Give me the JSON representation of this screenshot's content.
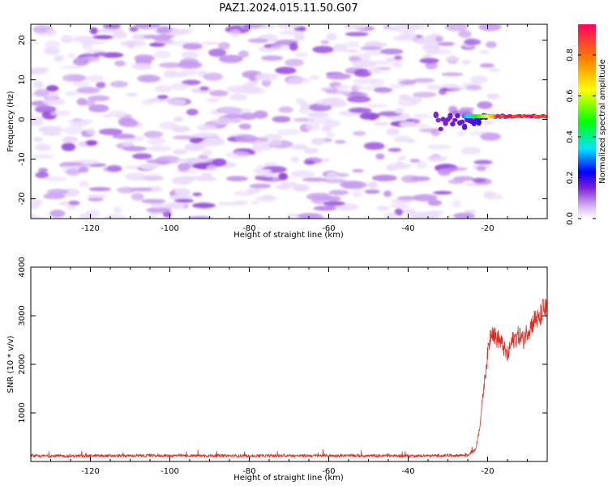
{
  "title": "PAZ1.2024.015.11.50.G07",
  "chart_data": [
    {
      "type": "heatmap",
      "xlabel": "Height of straight line (km)",
      "ylabel": "Frequency (Hz)",
      "xlim": [
        -135,
        -5
      ],
      "ylim": [
        -25,
        24
      ],
      "x_ticks": [
        -120,
        -100,
        -80,
        -60,
        -40,
        -20
      ],
      "y_ticks": [
        -20,
        -10,
        0,
        10,
        20
      ],
      "colorbar": {
        "label": "Normalized spectral amplitude",
        "range": [
          0,
          0.95
        ],
        "ticks": [
          "0.0",
          "0.2",
          "0.4",
          "0.6",
          "0.8"
        ],
        "colors": [
          "#ffffff",
          "#d9b8f5",
          "#7a1fd6",
          "#0000ff",
          "#00e5ff",
          "#00ff00",
          "#ffff00",
          "#ff8000",
          "#ff0060"
        ]
      },
      "features": {
        "noise_region_x": [
          -135,
          -22
        ],
        "noise_amplitude_range": [
          0.02,
          0.12
        ],
        "signal_line_frequency": 0.8,
        "signal_onset_x": -33,
        "signal_peak_x": [
          -18,
          -7
        ],
        "signal_peak_amplitude": 0.95
      }
    },
    {
      "type": "line",
      "xlabel": "Height of straight line (km)",
      "ylabel": "SNR (10 * v/v)",
      "xlim": [
        -135,
        -5
      ],
      "ylim": [
        0,
        4000
      ],
      "x_ticks": [
        -120,
        -100,
        -80,
        -60,
        -40,
        -20
      ],
      "y_ticks": [
        1000,
        2000,
        3000,
        4000
      ],
      "series": [
        {
          "color": "#e8281e",
          "x": [
            -135,
            -120,
            -100,
            -80,
            -60,
            -40,
            -30,
            -25,
            -23,
            -22,
            -21,
            -20,
            -19,
            -18,
            -17,
            -16,
            -15,
            -14,
            -13,
            -12,
            -11,
            -10,
            -9,
            -8,
            -7,
            -6,
            -5
          ],
          "y": [
            110,
            115,
            120,
            115,
            120,
            115,
            120,
            130,
            250,
            700,
            1500,
            2200,
            2750,
            2550,
            2500,
            2350,
            2150,
            2450,
            2550,
            2600,
            2500,
            2700,
            2800,
            2950,
            2900,
            3150,
            3100
          ]
        }
      ]
    }
  ]
}
